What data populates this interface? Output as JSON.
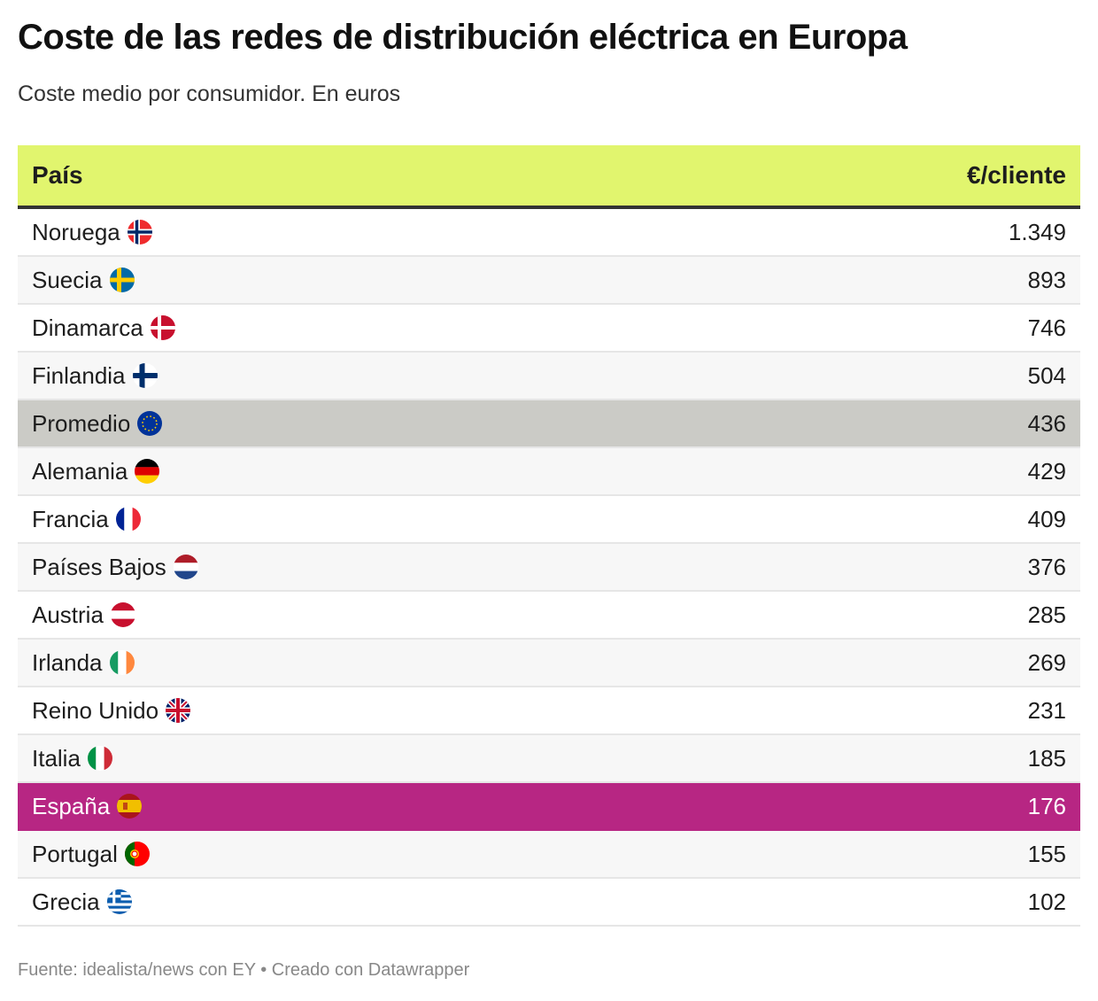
{
  "title": "Coste de las redes de distribución eléctrica en Europa",
  "subtitle": "Coste medio por consumidor. En euros",
  "footer": "Fuente: idealista/news con EY • Creado con Datawrapper",
  "colors": {
    "header": "#e1f56e",
    "highlight_spain": "#b72683",
    "highlight_average": "#cbcbc6"
  },
  "chart_data": {
    "type": "table",
    "columns": [
      "País",
      "€/cliente"
    ],
    "rows": [
      {
        "country": "Noruega",
        "value": "1.349",
        "flag": "flag-no"
      },
      {
        "country": "Suecia",
        "value": "893",
        "flag": "flag-se"
      },
      {
        "country": "Dinamarca",
        "value": "746",
        "flag": "flag-dk"
      },
      {
        "country": "Finlandia",
        "value": "504",
        "flag": "flag-fi"
      },
      {
        "country": "Promedio",
        "value": "436",
        "flag": "flag-eu",
        "highlight": "average"
      },
      {
        "country": "Alemania",
        "value": "429",
        "flag": "flag-de"
      },
      {
        "country": "Francia",
        "value": "409",
        "flag": "flag-fr"
      },
      {
        "country": "Países Bajos",
        "value": "376",
        "flag": "flag-nl"
      },
      {
        "country": "Austria",
        "value": "285",
        "flag": "flag-at"
      },
      {
        "country": "Irlanda",
        "value": "269",
        "flag": "flag-ie"
      },
      {
        "country": "Reino Unido",
        "value": "231",
        "flag": "flag-gb"
      },
      {
        "country": "Italia",
        "value": "185",
        "flag": "flag-it"
      },
      {
        "country": "España",
        "value": "176",
        "flag": "flag-es",
        "highlight": "spain"
      },
      {
        "country": "Portugal",
        "value": "155",
        "flag": "flag-pt"
      },
      {
        "country": "Grecia",
        "value": "102",
        "flag": "flag-gr"
      }
    ]
  }
}
